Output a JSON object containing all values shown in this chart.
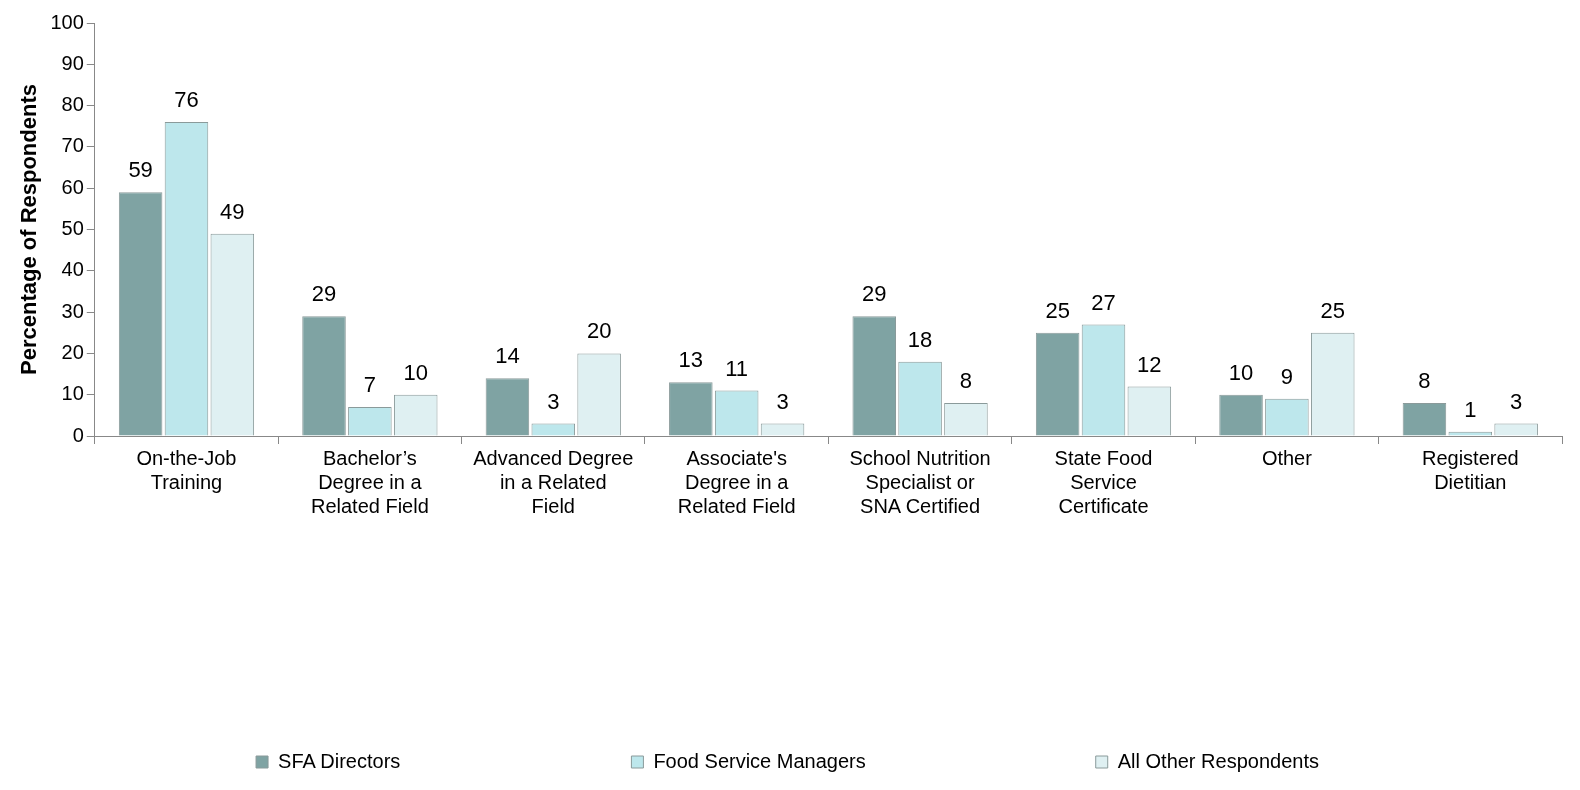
{
  "chart_data": {
    "type": "bar",
    "ylabel": "Percentage of Respondents",
    "categories": [
      "On-the-Job Training",
      "Bachelor’s Degree in a Related Field",
      "Advanced Degree in a Related Field",
      "Associate's Degree in a Related Field",
      "School Nutrition Specialist or SNA Certified",
      "State Food Service Certificate",
      "Other",
      "Registered Dietitian"
    ],
    "series": [
      {
        "name": "SFA Directors",
        "color": "#7fa3a3",
        "values": [
          59,
          29,
          14,
          13,
          29,
          25,
          10,
          8
        ]
      },
      {
        "name": "Food Service Managers",
        "color": "#bde7ec",
        "values": [
          76,
          7,
          3,
          11,
          18,
          27,
          9,
          1
        ]
      },
      {
        "name": "All Other Respondents",
        "color": "#dff0f2",
        "values": [
          49,
          10,
          20,
          3,
          8,
          12,
          25,
          3
        ]
      }
    ],
    "ylim": [
      0,
      100
    ],
    "yticks": [
      0,
      10,
      20,
      30,
      40,
      50,
      60,
      70,
      80,
      90,
      100
    ],
    "grid": false,
    "legend": "bottom",
    "data_labels": true
  }
}
